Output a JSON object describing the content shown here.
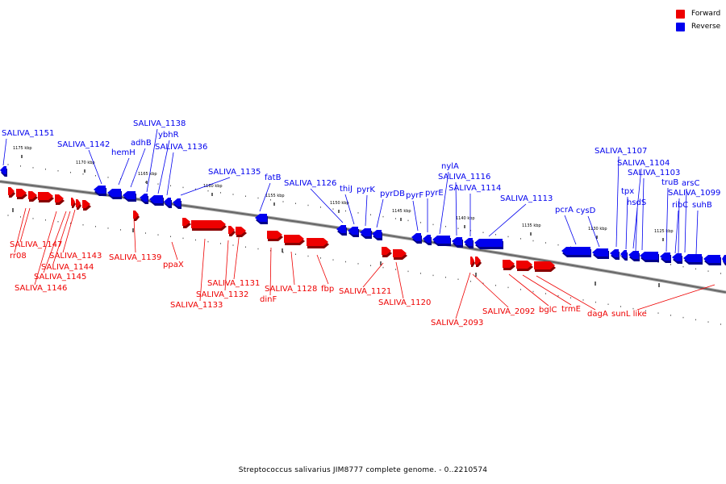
{
  "legend": {
    "forward_label": "Forward",
    "reverse_label": "Reverse",
    "forward_color": "#ee0000",
    "reverse_color": "#0000ee"
  },
  "caption": "Streptococcus salivarius JIM8777 complete genome. - 0..2210574",
  "scale_ticks": [
    {
      "label": "1175 kbp"
    },
    {
      "label": "1170 kbp"
    },
    {
      "label": "1165 kbp"
    },
    {
      "label": "1160 kbp"
    },
    {
      "label": "1155 kbp"
    },
    {
      "label": "1150 kbp"
    },
    {
      "label": "1145 kbp"
    },
    {
      "label": "1140 kbp"
    },
    {
      "label": "1135 kbp"
    },
    {
      "label": "1130 kbp"
    },
    {
      "label": "1125 kbp"
    }
  ],
  "reverse_genes": [
    {
      "label": "SALIVA_1151"
    },
    {
      "label": "SALIVA_1142"
    },
    {
      "label": "hemH"
    },
    {
      "label": "adhB"
    },
    {
      "label": "SALIVA_1138"
    },
    {
      "label": "ybhR"
    },
    {
      "label": "SALIVA_1136"
    },
    {
      "label": "SALIVA_1135"
    },
    {
      "label": "fatB"
    },
    {
      "label": "SALIVA_1126"
    },
    {
      "label": "thiJ"
    },
    {
      "label": "pyrK"
    },
    {
      "label": "pyrDB"
    },
    {
      "label": "pyrF"
    },
    {
      "label": "pyrE"
    },
    {
      "label": "nylA"
    },
    {
      "label": "SALIVA_1116"
    },
    {
      "label": "SALIVA_1114"
    },
    {
      "label": "SALIVA_1113"
    },
    {
      "label": "pcrA"
    },
    {
      "label": "cysD"
    },
    {
      "label": "SALIVA_1107"
    },
    {
      "label": "SALIVA_1104"
    },
    {
      "label": "tpx"
    },
    {
      "label": "SALIVA_1103"
    },
    {
      "label": "hsdS"
    },
    {
      "label": "truB"
    },
    {
      "label": "arsC"
    },
    {
      "label": "SALIVA_1099"
    },
    {
      "label": "ribC"
    },
    {
      "label": "suhB"
    }
  ],
  "forward_genes": [
    {
      "label": "SALIVA_1147"
    },
    {
      "label": "rr08"
    },
    {
      "label": "SALIVA_1143"
    },
    {
      "label": "SALIVA_1144"
    },
    {
      "label": "SALIVA_1145"
    },
    {
      "label": "SALIVA_1146"
    },
    {
      "label": "SALIVA_1139"
    },
    {
      "label": "ppaX"
    },
    {
      "label": "SALIVA_1131"
    },
    {
      "label": "SALIVA_1132"
    },
    {
      "label": "SALIVA_1133"
    },
    {
      "label": "SALIVA_1128"
    },
    {
      "label": "dinF"
    },
    {
      "label": "fbp"
    },
    {
      "label": "SALIVA_1121"
    },
    {
      "label": "SALIVA_1120"
    },
    {
      "label": "SALIVA_2093"
    },
    {
      "label": "SALIVA_2092"
    },
    {
      "label": "bglC"
    },
    {
      "label": "trmE"
    },
    {
      "label": "dagA"
    },
    {
      "label": "sunL like"
    }
  ]
}
